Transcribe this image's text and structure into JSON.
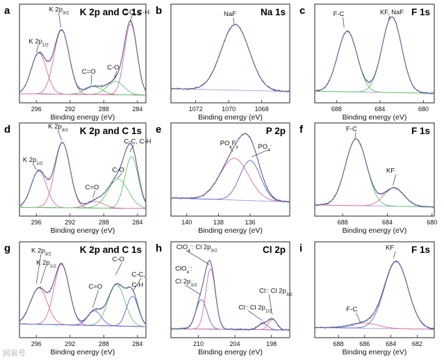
{
  "watermark": "网易号",
  "chart_data": [
    {
      "id": "a",
      "letter": "a",
      "title": "K 2p and C 1s",
      "type": "line",
      "xlabel": "Binding energy (eV)",
      "xlim": [
        298,
        283
      ],
      "ticks": [
        296,
        292,
        288,
        284
      ],
      "peaks": [
        {
          "name": "K 2p1/2",
          "center": 295.7,
          "height": 0.46,
          "width": 0.9,
          "color": "#d36a9e"
        },
        {
          "name": "K 2p3/2",
          "center": 293.0,
          "height": 0.72,
          "width": 0.9,
          "color": "#d36a9e"
        },
        {
          "name": "C=O",
          "center": 289.2,
          "height": 0.09,
          "width": 1.0,
          "color": "#5fbf6a"
        },
        {
          "name": "C-O",
          "center": 286.6,
          "height": 0.15,
          "width": 1.0,
          "color": "#5fbf6a"
        },
        {
          "name": "C-C, C-H",
          "center": 284.8,
          "height": 0.8,
          "width": 0.75,
          "color": "#d36a9e"
        }
      ],
      "baseline": 0.04,
      "annotations": [
        {
          "text": "K 2p",
          "sub": "1/2",
          "x": 296.9,
          "y": 0.62,
          "ax": 296.0,
          "ay": 0.52
        },
        {
          "text": "K 2p",
          "sub": "3/2",
          "x": 294.5,
          "y": 0.98,
          "ax": 293.1,
          "ay": 0.8
        },
        {
          "text": "C=O",
          "x": 290.6,
          "y": 0.28,
          "ax": 289.5,
          "ay": 0.16
        },
        {
          "text": "C-O",
          "x": 287.6,
          "y": 0.33,
          "ax": 286.8,
          "ay": 0.22
        },
        {
          "text": "C-C, C-H",
          "x": 285.8,
          "y": 0.95,
          "ax": 284.9,
          "ay": 0.86
        }
      ]
    },
    {
      "id": "b",
      "letter": "b",
      "title": "Na 1s",
      "type": "line",
      "xlabel": "Binding energy (eV)",
      "xlim": [
        1073.5,
        1066.3
      ],
      "ticks": [
        1072,
        1070,
        1068
      ],
      "peaks": [
        {
          "name": "NaF",
          "center": 1069.6,
          "height": 0.74,
          "width": 0.85,
          "color": "#d36a9e"
        }
      ],
      "baseline": 0.08,
      "annotations": [
        {
          "text": "NaF",
          "x": 1070.3,
          "y": 0.93,
          "ax": 1069.7,
          "ay": 0.84
        }
      ]
    },
    {
      "id": "c",
      "letter": "c",
      "title": "F 1s",
      "type": "line",
      "xlabel": "Binding energy (eV)",
      "xlim": [
        690,
        679
      ],
      "ticks": [
        688,
        684,
        680
      ],
      "peaks": [
        {
          "name": "F-C",
          "center": 687.0,
          "height": 0.68,
          "width": 0.9,
          "color": "#5fbf6a"
        },
        {
          "name": "KF, NaF",
          "center": 682.9,
          "height": 0.85,
          "width": 0.9,
          "color": "#5fbf6a"
        }
      ],
      "baseline": 0.06,
      "annotations": [
        {
          "text": "F-C",
          "x": 688.3,
          "y": 0.93,
          "ax": 687.3,
          "ay": 0.8
        },
        {
          "text": "KF, NaF",
          "x": 684.0,
          "y": 0.95,
          "ax": 683.2,
          "ay": 0.88
        }
      ]
    },
    {
      "id": "d",
      "letter": "d",
      "title": "K 2p and C 1s",
      "type": "line",
      "xlabel": "Binding energy (eV)",
      "xlim": [
        298,
        283
      ],
      "ticks": [
        296,
        292,
        288,
        284
      ],
      "peaks": [
        {
          "name": "K 2p1/2",
          "center": 295.7,
          "height": 0.44,
          "width": 0.9,
          "color": "#d36a9e"
        },
        {
          "name": "K 2p3/2",
          "center": 292.9,
          "height": 0.78,
          "width": 0.9,
          "color": "#d36a9e"
        },
        {
          "name": "C=O",
          "center": 289.0,
          "height": 0.08,
          "width": 1.0,
          "color": "#d36a9e"
        },
        {
          "name": "C-O",
          "center": 286.3,
          "height": 0.35,
          "width": 1.2,
          "color": "#5fbf6a"
        },
        {
          "name": "C-C, C-H",
          "center": 284.7,
          "height": 0.62,
          "width": 0.8,
          "color": "#5fbf6a"
        }
      ],
      "baseline": 0.04,
      "annotations": [
        {
          "text": "K 2p",
          "sub": "1/2",
          "x": 297.6,
          "y": 0.6,
          "ax": 296.0,
          "ay": 0.51
        },
        {
          "text": "K 2p",
          "sub": "3/2",
          "x": 294.6,
          "y": 1.0,
          "ax": 293.0,
          "ay": 0.86
        },
        {
          "text": "C=O",
          "x": 290.2,
          "y": 0.27,
          "ax": 289.3,
          "ay": 0.17
        },
        {
          "text": "C-O",
          "x": 287.0,
          "y": 0.48,
          "ax": 286.4,
          "ay": 0.4
        },
        {
          "text": "C-C, C-H",
          "x": 285.6,
          "y": 0.82,
          "ax": 284.9,
          "ay": 0.72
        }
      ]
    },
    {
      "id": "e",
      "letter": "e",
      "title": "P 2p",
      "type": "line",
      "xlabel": "Binding energy (eV)",
      "xlim": [
        141,
        133.5
      ],
      "ticks": [
        140,
        138,
        136
      ],
      "peaks": [
        {
          "name": "POxFy",
          "center": 137.0,
          "height": 0.5,
          "width": 0.9,
          "color": "#d36a9e"
        },
        {
          "name": "PO4",
          "center": 136.0,
          "height": 0.48,
          "width": 0.65,
          "color": "#5a5fd1"
        }
      ],
      "baseline": 0.12,
      "annotations": [
        {
          "text": "PO",
          "x": 137.9,
          "y": 0.8,
          "ax": 137.1,
          "ay": 0.72,
          "parts": [
            [
              "PO",
              ""
            ],
            [
              "x",
              "sub"
            ],
            [
              "F",
              ""
            ],
            [
              "y",
              "sub"
            ]
          ]
        },
        {
          "text": "PO",
          "x": 135.5,
          "y": 0.76,
          "ax": 135.9,
          "ay": 0.66,
          "parts": [
            [
              "PO",
              ""
            ],
            [
              "4",
              "sub"
            ],
            [
              "-",
              "sup"
            ]
          ]
        }
      ]
    },
    {
      "id": "f",
      "letter": "f",
      "title": "F 1s",
      "type": "line",
      "xlabel": "Binding energy (eV)",
      "xlim": [
        690.5,
        679.8
      ],
      "ticks": [
        688,
        684,
        680
      ],
      "peaks": [
        {
          "name": "F-C",
          "center": 686.8,
          "height": 0.8,
          "width": 0.95,
          "color": "#5fbf6a"
        },
        {
          "name": "KF",
          "center": 683.4,
          "height": 0.22,
          "width": 0.9,
          "color": "#d36a9e"
        }
      ],
      "baseline": 0.06,
      "annotations": [
        {
          "text": "F-C",
          "x": 687.7,
          "y": 0.97,
          "ax": 686.9,
          "ay": 0.88
        },
        {
          "text": "KF",
          "x": 684.1,
          "y": 0.47,
          "ax": 683.5,
          "ay": 0.32
        }
      ]
    },
    {
      "id": "g",
      "letter": "g",
      "title": "K 2p and C 1s",
      "type": "line",
      "xlabel": "Binding energy (eV)",
      "xlim": [
        298,
        283
      ],
      "ticks": [
        296,
        292,
        288,
        284
      ],
      "peaks": [
        {
          "name": "K 2p1/2",
          "center": 295.7,
          "height": 0.42,
          "width": 1.0,
          "color": "#d36a9e"
        },
        {
          "name": "K 2p3/2",
          "center": 293.0,
          "height": 0.7,
          "width": 0.9,
          "color": "#d36a9e"
        },
        {
          "name": "C=O",
          "center": 289.1,
          "height": 0.17,
          "width": 0.8,
          "color": "#5a5fd1"
        },
        {
          "name": "C-O",
          "center": 286.5,
          "height": 0.48,
          "width": 1.0,
          "color": "#5fbf6a"
        },
        {
          "name": "C-C, C-H",
          "center": 284.6,
          "height": 0.35,
          "width": 0.7,
          "color": "#5a5fd1"
        }
      ],
      "baseline": 0.08,
      "annotations": [
        {
          "text": "K 2p",
          "sub": "3/2",
          "x": 296.6,
          "y": 0.94,
          "ax": 296.0,
          "ay": 0.58
        },
        {
          "text": "K 2p",
          "sub": "1/2",
          "x": 296.0,
          "y": 0.8,
          "ax": 295.5,
          "ay": 0.58
        },
        {
          "text": "C=O",
          "x": 289.8,
          "y": 0.52,
          "ax": 289.3,
          "ay": 0.3
        },
        {
          "text": "C-O",
          "x": 287.0,
          "y": 0.84,
          "ax": 286.6,
          "ay": 0.68
        },
        {
          "text": "C-C,",
          "x": 284.7,
          "y": 0.66,
          "ax": 284.5,
          "ay": 0.5
        },
        {
          "text": "C-H",
          "x": 284.7,
          "y": 0.54
        }
      ]
    },
    {
      "id": "h",
      "letter": "h",
      "title": "Cl 2p",
      "type": "line",
      "xlabel": "Binding energy (eV)",
      "xlim": [
        214.5,
        195
      ],
      "ticks": [
        210,
        204,
        198
      ],
      "peaks": [
        {
          "name": "ClO4- Cl 2p1/2",
          "center": 209.5,
          "height": 0.34,
          "width": 0.9,
          "color": "#5a5fd1"
        },
        {
          "name": "ClO4- Cl 2p3/2",
          "center": 208.0,
          "height": 0.7,
          "width": 0.8,
          "color": "#d36a9e"
        },
        {
          "name": "Cl- Cl 2p1/2",
          "center": 199.4,
          "height": 0.07,
          "width": 0.8,
          "color": "#5a5fd1"
        },
        {
          "name": "Cl- Cl 2p3/2",
          "center": 197.8,
          "height": 0.12,
          "width": 0.7,
          "color": "#d36a9e"
        }
      ],
      "baseline": 0.04,
      "annotations": [
        {
          "text": "",
          "x": 213.6,
          "y": 0.98,
          "ax": 208.2,
          "ay": 0.8,
          "parts": [
            [
              "ClO",
              ""
            ],
            [
              "4",
              "sub"
            ],
            [
              "-",
              "sup"
            ],
            [
              ": Cl 2p",
              ""
            ],
            [
              "3/2",
              "sub"
            ]
          ]
        },
        {
          "text": "",
          "x": 213.8,
          "y": 0.73,
          "parts": [
            [
              "ClO",
              ""
            ],
            [
              "4",
              "sub"
            ],
            [
              "-",
              "sup"
            ],
            [
              ":",
              ""
            ]
          ]
        },
        {
          "text": "",
          "x": 213.8,
          "y": 0.58,
          "ax": 209.6,
          "ay": 0.45,
          "parts": [
            [
              "Cl 2p",
              ""
            ],
            [
              "1/2",
              "sub"
            ]
          ]
        },
        {
          "text": "",
          "x": 203.4,
          "y": 0.28,
          "ax": 199.5,
          "ay": 0.15,
          "parts": [
            [
              "Cl",
              ""
            ],
            [
              "-",
              "sup"
            ],
            [
              ": Cl 2p",
              ""
            ],
            [
              "1/2",
              "sub"
            ]
          ]
        },
        {
          "text": "",
          "x": 200.0,
          "y": 0.47,
          "ax": 197.9,
          "ay": 0.22,
          "parts": [
            [
              "Cl",
              ""
            ],
            [
              "-",
              "sup"
            ],
            [
              ": Cl 2p",
              ""
            ],
            [
              "3/2",
              "sub"
            ]
          ]
        }
      ]
    },
    {
      "id": "i",
      "letter": "i",
      "title": "F 1s",
      "type": "line",
      "xlabel": "Binding energy (eV)",
      "xlim": [
        689.8,
        680.7
      ],
      "ticks": [
        688,
        686,
        684,
        682
      ],
      "peaks": [
        {
          "name": "F-C",
          "center": 686.0,
          "height": 0.06,
          "width": 1.0,
          "color": "#d36a9e"
        },
        {
          "name": "KF",
          "center": 683.6,
          "height": 0.78,
          "width": 0.9,
          "color": "#5a5fd1"
        }
      ],
      "baseline": 0.05,
      "annotations": [
        {
          "text": "F-C",
          "x": 687.4,
          "y": 0.26,
          "ax": 686.3,
          "ay": 0.12
        },
        {
          "text": "KF",
          "x": 684.4,
          "y": 0.97,
          "ax": 683.8,
          "ay": 0.88
        }
      ]
    }
  ]
}
